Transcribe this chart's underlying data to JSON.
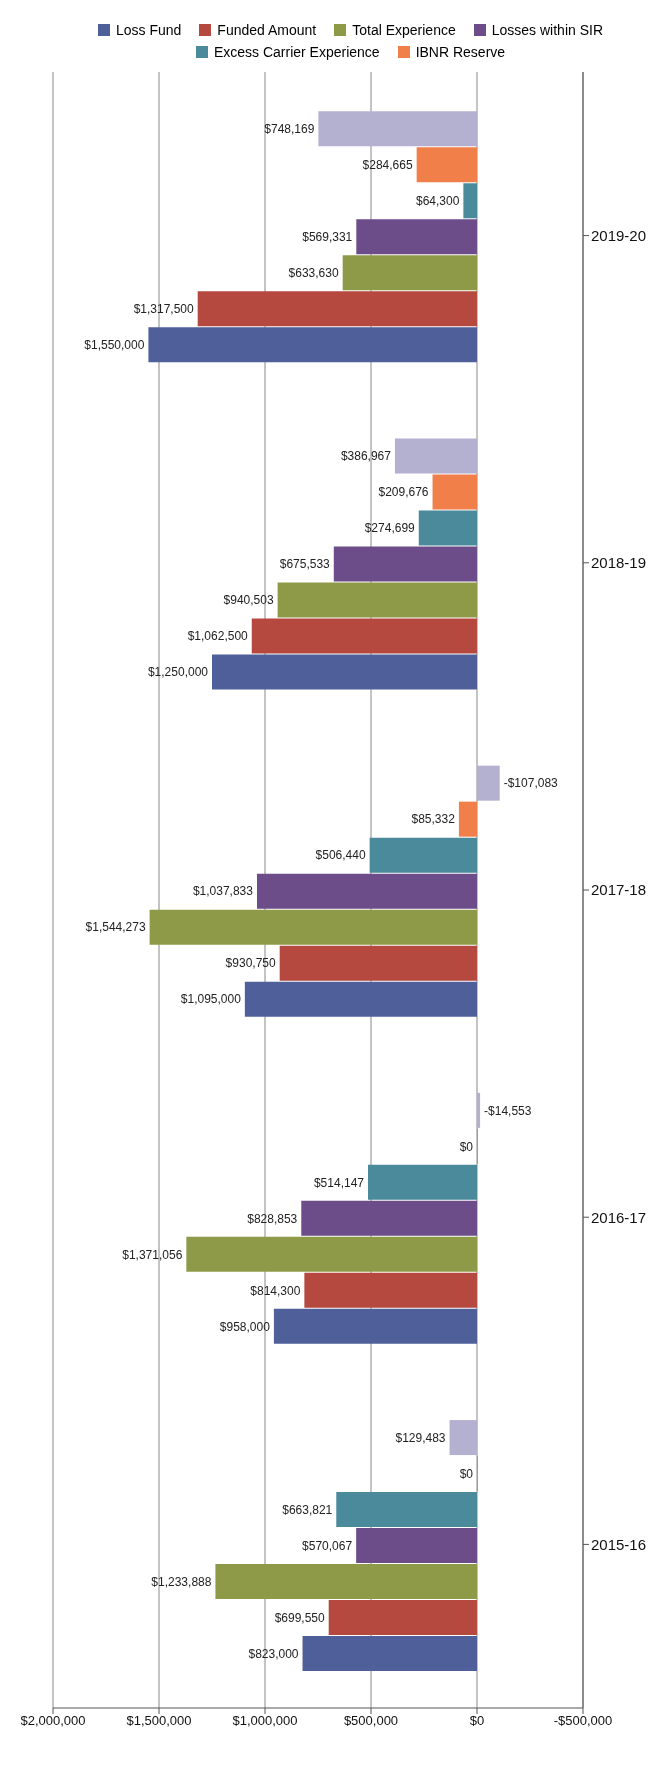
{
  "chart_data": {
    "type": "bar",
    "orientation": "horizontal",
    "categories": [
      "2019-20",
      "2018-19",
      "2017-18",
      "2016-17",
      "2015-16"
    ],
    "series": [
      {
        "name": "Loss Fund",
        "color": "#4f5f9a",
        "values": [
          1550000,
          1250000,
          1095000,
          958000,
          823000
        ],
        "value_labels": [
          "$1,550,000",
          "$1,250,000",
          "$1,095,000",
          "$958,000",
          "$823,000"
        ]
      },
      {
        "name": "Funded Amount",
        "color": "#b5483f",
        "values": [
          1317500,
          1062500,
          930750,
          814300,
          699550
        ],
        "value_labels": [
          "$1,317,500",
          "$1,062,500",
          "$930,750",
          "$814,300",
          "$699,550"
        ]
      },
      {
        "name": "Total Experience",
        "color": "#8f9a48",
        "values": [
          633630,
          940503,
          1544273,
          1371056,
          1233888
        ],
        "value_labels": [
          "$633,630",
          "$940,503",
          "$1,544,273",
          "$1,371,056",
          "$1,233,888"
        ]
      },
      {
        "name": "Losses within SIR",
        "color": "#6d4c8a",
        "values": [
          569331,
          675533,
          1037833,
          828853,
          570067
        ],
        "value_labels": [
          "$569,331",
          "$675,533",
          "$1,037,833",
          "$828,853",
          "$570,067"
        ]
      },
      {
        "name": "Excess Carrier Experience",
        "color": "#4b8a9b",
        "values": [
          64300,
          274699,
          506440,
          514147,
          663821
        ],
        "value_labels": [
          "$64,300",
          "$274,699",
          "$506,440",
          "$514,147",
          "$663,821"
        ]
      },
      {
        "name": "IBNR Reserve",
        "color": "#f07f4a",
        "values": [
          284665,
          209676,
          85332,
          0,
          0
        ],
        "value_labels": [
          "$284,665",
          "$209,676",
          "$85,332",
          "$0",
          "$0"
        ]
      },
      {
        "color": "#b4b0d0",
        "values": [
          748169,
          386967,
          -107083,
          -14553,
          129483
        ],
        "value_labels": [
          "$748,169",
          "$386,967",
          "-$107,083",
          "-$14,553",
          "$129,483"
        ]
      }
    ],
    "xlim": [
      2000000,
      -500000
    ],
    "xticks": [
      {
        "value": 2000000,
        "label": "$2,000,000"
      },
      {
        "value": 1500000,
        "label": "$1,500,000"
      },
      {
        "value": 1000000,
        "label": "$1,000,000"
      },
      {
        "value": 500000,
        "label": "$500,000"
      },
      {
        "value": 0,
        "label": "$0"
      },
      {
        "value": -500000,
        "label": "-$500,000"
      }
    ],
    "grid": "x",
    "legend": "top"
  }
}
